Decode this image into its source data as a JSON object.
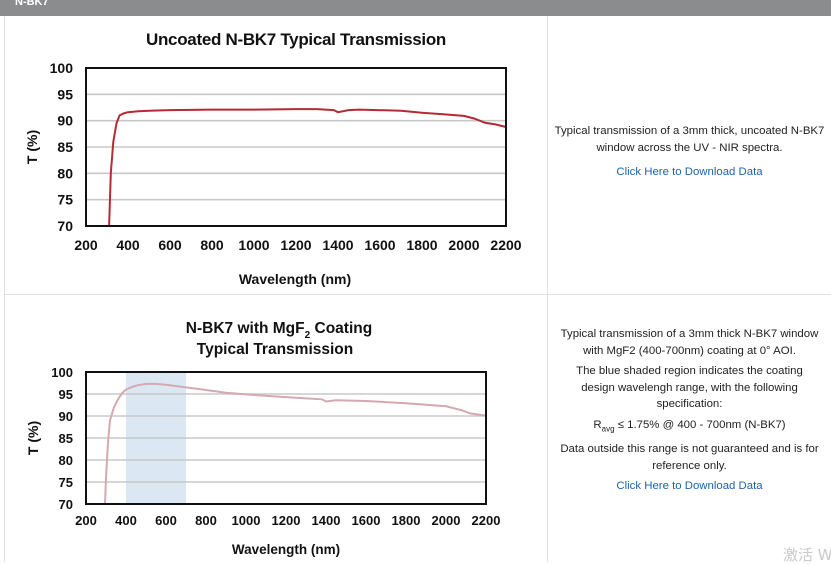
{
  "header": {
    "label": "N-BK7"
  },
  "charts": [
    {
      "title": "Uncoated N-BK7 Typical Transmission",
      "xlabel": "Wavelength (nm)",
      "ylabel": "T (%)",
      "xticks": [
        "200",
        "400",
        "600",
        "800",
        "1000",
        "1200",
        "1400",
        "1600",
        "1800",
        "2000",
        "2200"
      ],
      "yticks": [
        "100",
        "95",
        "90",
        "85",
        "80",
        "75",
        "70"
      ]
    },
    {
      "title_pre": "N-BK7 with MgF",
      "title_sub": "2",
      "title_post": " Coating",
      "title_line2": "Typical Transmission",
      "xlabel": "Wavelength (nm)",
      "ylabel": "T (%)",
      "xticks": [
        "200",
        "400",
        "600",
        "800",
        "1000",
        "1200",
        "1400",
        "1600",
        "1800",
        "2000",
        "2200"
      ],
      "yticks": [
        "100",
        "95",
        "90",
        "85",
        "80",
        "75",
        "70"
      ]
    }
  ],
  "chart_data": [
    {
      "type": "line",
      "title": "Uncoated N-BK7 Typical Transmission",
      "xlabel": "Wavelength (nm)",
      "ylabel": "T (%)",
      "xlim": [
        200,
        2200
      ],
      "ylim": [
        70,
        100
      ],
      "grid": true,
      "color": "#b52a34",
      "series": [
        {
          "x": [
            310,
            318,
            330,
            345,
            360,
            380,
            400,
            450,
            500,
            600,
            800,
            1000,
            1200,
            1300,
            1380,
            1400,
            1450,
            1500,
            1700,
            1800,
            1900,
            2000,
            2050,
            2100,
            2150,
            2200
          ],
          "y": [
            70,
            80,
            86,
            89.5,
            91,
            91.4,
            91.6,
            91.8,
            91.9,
            92.0,
            92.1,
            92.1,
            92.2,
            92.2,
            92.0,
            91.6,
            92.0,
            92.1,
            91.9,
            91.5,
            91.2,
            90.9,
            90.4,
            89.6,
            89.3,
            88.8
          ]
        }
      ]
    },
    {
      "type": "line",
      "title": "N-BK7 with MgF2 Coating Typical Transmission",
      "xlabel": "Wavelength (nm)",
      "ylabel": "T (%)",
      "xlim": [
        200,
        2200
      ],
      "ylim": [
        70,
        100
      ],
      "grid": true,
      "color": "#d4a9b1",
      "shaded_region": [
        400,
        700
      ],
      "shaded_color": "#dbe8f4",
      "series": [
        {
          "x": [
            295,
            300,
            310,
            320,
            340,
            360,
            380,
            400,
            430,
            460,
            500,
            550,
            600,
            700,
            800,
            900,
            1000,
            1200,
            1300,
            1380,
            1400,
            1450,
            1600,
            1800,
            2000,
            2080,
            2120,
            2200
          ],
          "y": [
            70,
            76,
            84,
            89,
            92,
            93.8,
            95.2,
            96.0,
            96.6,
            97.0,
            97.3,
            97.3,
            97.1,
            96.5,
            95.9,
            95.3,
            94.9,
            94.3,
            94.0,
            93.8,
            93.3,
            93.6,
            93.4,
            92.9,
            92.2,
            91.3,
            90.6,
            90.1
          ]
        }
      ]
    }
  ],
  "panel1": {
    "desc": "Typical transmission of a 3mm thick, uncoated N-BK7 window across the UV - NIR spectra.",
    "link": "Click Here to Download Data"
  },
  "panel2": {
    "desc1": "Typical transmission of a 3mm thick N-BK7 window with MgF2 (400-700nm) coating at 0° AOI.",
    "desc2": "The blue shaded region indicates the coating design wavelengh range, with the following specification:",
    "spec_r": "R",
    "spec_sub": "avg",
    "spec_rest": " ≤ 1.75% @ 400 - 700nm (N-BK7)",
    "desc3": "Data outside this range is not guaranteed and is for reference only.",
    "link": "Click Here to Download Data"
  },
  "watermark": "激活 W"
}
